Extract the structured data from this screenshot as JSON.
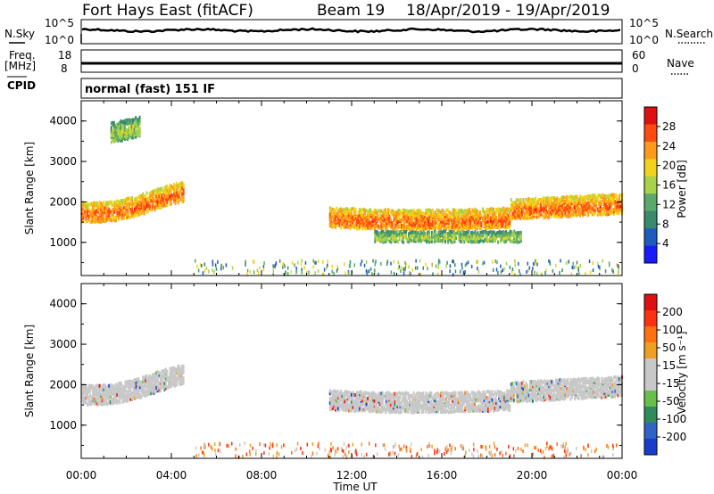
{
  "title": {
    "radar": "Fort Hays East (fitACF)",
    "beam": "Beam 19",
    "dates": "18/Apr/2019 - 19/Apr/2019"
  },
  "strips": {
    "nsky_label": "N.Sky",
    "nsearch_label": "N.Search",
    "noise_ticks": [
      "10^5",
      "10^0"
    ],
    "freq_label_1": "Freq.",
    "freq_label_2": "[MHz]",
    "freq_ticks": [
      "18",
      "8"
    ],
    "nave_label": "Nave",
    "nave_ticks": [
      "60",
      "0"
    ],
    "cpid_label": "CPID",
    "cpid_value": "normal (fast) 151 IF"
  },
  "colors": {
    "power_scale": [
      "#1a1aff",
      "#1f5cbf",
      "#3a8a6e",
      "#5aa86a",
      "#a8d24a",
      "#f2d21a",
      "#ff9a1a",
      "#ff4a10",
      "#e01010"
    ],
    "velocity_scale": [
      "#1a3ccc",
      "#2e64c8",
      "#2e8c5c",
      "#66c04a",
      "#c8c8c8",
      "#c8c8c8",
      "#f0a020",
      "#ff7010",
      "#ff3010",
      "#e01010"
    ],
    "ground_scatter": "#c8c8c8"
  },
  "chart_data": [
    {
      "type": "heatmap",
      "panel": "power",
      "ylabel": "Slant Range [km]",
      "ylim": [
        180,
        4500
      ],
      "yticks": [
        "1000",
        "2000",
        "3000",
        "4000"
      ],
      "xlim": [
        "00:00",
        "24:00"
      ],
      "colorbar": {
        "label": "Power [dB]",
        "ticks": [
          "28",
          "24",
          "20",
          "16",
          "12",
          "8",
          "4"
        ],
        "range": [
          0,
          32
        ]
      },
      "echo_regions": [
        {
          "t_start": 0.0,
          "t_end": 4.5,
          "range_center_km": 1950,
          "range_width_km": 500,
          "power_db": 22,
          "note": "main backscatter band"
        },
        {
          "t_start": 1.3,
          "t_end": 2.6,
          "range_center_km": 3900,
          "range_width_km": 500,
          "power_db": 12,
          "note": "upper patch"
        },
        {
          "t_start": 11.0,
          "t_end": 24.0,
          "range_center_km": 1700,
          "range_width_km": 500,
          "power_db": 22,
          "note": "afternoon band"
        },
        {
          "t_start": 13.0,
          "t_end": 19.5,
          "range_center_km": 1150,
          "range_width_km": 250,
          "power_db": 12,
          "note": "lower weak band"
        }
      ]
    },
    {
      "type": "heatmap",
      "panel": "velocity",
      "ylabel": "Slant Range [km]",
      "xlabel": "Time UT",
      "ylim": [
        180,
        4500
      ],
      "yticks": [
        "1000",
        "2000",
        "3000",
        "4000"
      ],
      "xticks": [
        "00:00",
        "04:00",
        "08:00",
        "12:00",
        "16:00",
        "20:00",
        "00:00"
      ],
      "colorbar": {
        "label": "Velocity [m s⁻¹]",
        "ticks": [
          "200",
          "100",
          "50",
          "15",
          "-15",
          "-50",
          "-100",
          "-200"
        ]
      },
      "echo_regions": [
        {
          "t_start": 0.0,
          "t_end": 4.5,
          "range_center_km": 1950,
          "range_width_km": 500,
          "velocity_ms": 0,
          "note": "ground scatter (grey)"
        },
        {
          "t_start": 11.0,
          "t_end": 24.0,
          "range_center_km": 1700,
          "range_width_km": 500,
          "velocity_ms": 0,
          "note": "ground scatter (grey)"
        }
      ]
    }
  ]
}
